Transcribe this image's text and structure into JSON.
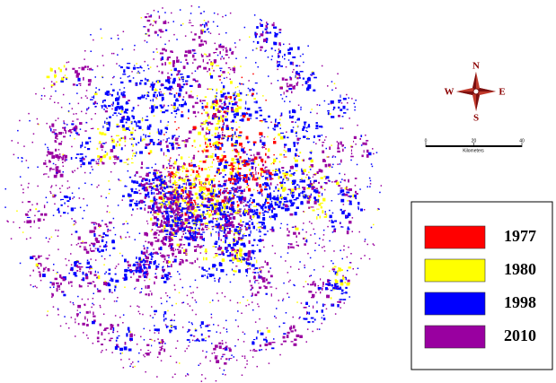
{
  "map": {
    "legend": [
      {
        "label": "1977",
        "color": "#ff0000"
      },
      {
        "label": "1980",
        "color": "#ffff00"
      },
      {
        "label": "1998",
        "color": "#0000ff"
      },
      {
        "label": "2010",
        "color": "#9900a0"
      }
    ],
    "compass": {
      "north": "N",
      "south": "S",
      "east": "E",
      "west": "W"
    },
    "scale_bar": {
      "ticks": [
        0,
        20,
        40
      ],
      "unit": "Kilometers"
    }
  }
}
